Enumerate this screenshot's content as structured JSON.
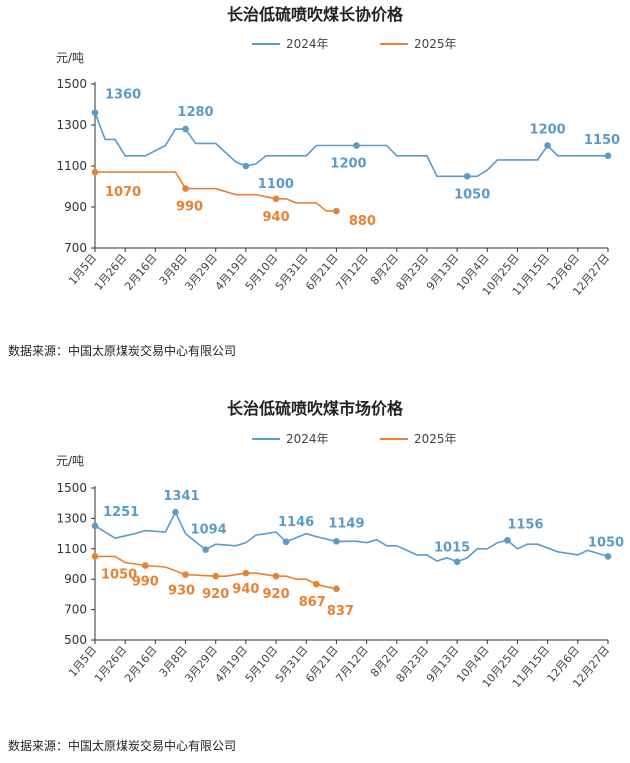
{
  "colors": {
    "s2024": "#5b9bc8",
    "s2025": "#ea8132"
  },
  "chart_data": [
    {
      "type": "line",
      "title": "长治低硫喷吹煤长协价格",
      "unit": "元/吨",
      "ylim": [
        700,
        1500
      ],
      "yticks": [
        700,
        900,
        1100,
        1300,
        1500
      ],
      "xlim": [
        0,
        51
      ],
      "x_tick_labels": [
        "1月5日",
        "1月26日",
        "2月16日",
        "3月8日",
        "3月29日",
        "4月19日",
        "5月10日",
        "5月31日",
        "6月21日",
        "7月12日",
        "8月2日",
        "8月23日",
        "9月13日",
        "10月4日",
        "10月25日",
        "11月15日",
        "12月6日",
        "12月27日"
      ],
      "x_tick_positions": [
        0,
        3,
        6,
        9,
        12,
        15,
        18,
        21,
        24,
        27,
        30,
        33,
        36,
        39,
        42,
        45,
        48,
        51
      ],
      "legend": "top-center",
      "series": [
        {
          "name": "2024年",
          "color_key": "s2024",
          "points": [
            [
              0,
              1360
            ],
            [
              1,
              1230
            ],
            [
              2,
              1230
            ],
            [
              3,
              1150
            ],
            [
              5,
              1150
            ],
            [
              7,
              1200
            ],
            [
              8,
              1280
            ],
            [
              9,
              1280
            ],
            [
              10,
              1210
            ],
            [
              12,
              1210
            ],
            [
              14,
              1120
            ],
            [
              15,
              1100
            ],
            [
              16,
              1110
            ],
            [
              17,
              1150
            ],
            [
              21,
              1150
            ],
            [
              22,
              1200
            ],
            [
              26,
              1200
            ],
            [
              29,
              1200
            ],
            [
              30,
              1150
            ],
            [
              33,
              1150
            ],
            [
              34,
              1050
            ],
            [
              37,
              1050
            ],
            [
              38,
              1050
            ],
            [
              39,
              1080
            ],
            [
              40,
              1130
            ],
            [
              44,
              1130
            ],
            [
              45,
              1200
            ],
            [
              46,
              1150
            ],
            [
              51,
              1150
            ]
          ],
          "markers": [
            [
              0,
              1360,
              "1360"
            ],
            [
              9,
              1280,
              "1280"
            ],
            [
              15,
              1100,
              "1100"
            ],
            [
              26,
              1200,
              "1200"
            ],
            [
              37,
              1050,
              "1050"
            ],
            [
              45,
              1200,
              "1200"
            ],
            [
              51,
              1150,
              "1150"
            ]
          ]
        },
        {
          "name": "2025年",
          "color_key": "s2025",
          "points": [
            [
              0,
              1070
            ],
            [
              8,
              1070
            ],
            [
              9,
              990
            ],
            [
              12,
              990
            ],
            [
              14,
              960
            ],
            [
              16,
              960
            ],
            [
              18,
              940
            ],
            [
              19,
              940
            ],
            [
              20,
              920
            ],
            [
              22,
              920
            ],
            [
              23,
              880
            ],
            [
              24,
              880
            ]
          ],
          "markers": [
            [
              0,
              1070,
              "1070"
            ],
            [
              9,
              990,
              "990"
            ],
            [
              18,
              940,
              "940"
            ],
            [
              24,
              880,
              "880"
            ]
          ]
        }
      ]
    },
    {
      "type": "line",
      "title": "长治低硫喷吹煤市场价格",
      "unit": "元/吨",
      "ylim": [
        500,
        1500
      ],
      "yticks": [
        500,
        700,
        900,
        1100,
        1300,
        1500
      ],
      "xlim": [
        0,
        51
      ],
      "x_tick_labels": [
        "1月5日",
        "1月26日",
        "2月16日",
        "3月8日",
        "3月29日",
        "4月19日",
        "5月10日",
        "5月31日",
        "6月21日",
        "7月12日",
        "8月2日",
        "8月23日",
        "9月13日",
        "10月4日",
        "10月25日",
        "11月15日",
        "12月6日",
        "12月27日"
      ],
      "x_tick_positions": [
        0,
        3,
        6,
        9,
        12,
        15,
        18,
        21,
        24,
        27,
        30,
        33,
        36,
        39,
        42,
        45,
        48,
        51
      ],
      "legend": "top-center",
      "series": [
        {
          "name": "2024年",
          "color_key": "s2024",
          "points": [
            [
              0,
              1251
            ],
            [
              2,
              1170
            ],
            [
              4,
              1200
            ],
            [
              5,
              1220
            ],
            [
              7,
              1210
            ],
            [
              8,
              1341
            ],
            [
              9,
              1200
            ],
            [
              11,
              1094
            ],
            [
              12,
              1130
            ],
            [
              14,
              1120
            ],
            [
              15,
              1140
            ],
            [
              16,
              1190
            ],
            [
              18,
              1210
            ],
            [
              19,
              1146
            ],
            [
              21,
              1200
            ],
            [
              22,
              1180
            ],
            [
              24,
              1149
            ],
            [
              26,
              1150
            ],
            [
              27,
              1140
            ],
            [
              28,
              1160
            ],
            [
              29,
              1120
            ],
            [
              30,
              1120
            ],
            [
              32,
              1060
            ],
            [
              33,
              1060
            ],
            [
              34,
              1020
            ],
            [
              35,
              1040
            ],
            [
              36,
              1015
            ],
            [
              37,
              1040
            ],
            [
              38,
              1100
            ],
            [
              39,
              1100
            ],
            [
              40,
              1140
            ],
            [
              41,
              1156
            ],
            [
              42,
              1100
            ],
            [
              43,
              1130
            ],
            [
              44,
              1130
            ],
            [
              46,
              1080
            ],
            [
              48,
              1060
            ],
            [
              49,
              1090
            ],
            [
              51,
              1050
            ]
          ],
          "markers": [
            [
              0,
              1251,
              "1251"
            ],
            [
              8,
              1341,
              "1341"
            ],
            [
              11,
              1094,
              "1094"
            ],
            [
              19,
              1146,
              "1146"
            ],
            [
              24,
              1149,
              "1149"
            ],
            [
              36,
              1015,
              "1015"
            ],
            [
              41,
              1156,
              "1156"
            ],
            [
              51,
              1050,
              "1050"
            ]
          ]
        },
        {
          "name": "2025年",
          "color_key": "s2025",
          "points": [
            [
              0,
              1050
            ],
            [
              2,
              1050
            ],
            [
              3,
              1010
            ],
            [
              5,
              990
            ],
            [
              7,
              980
            ],
            [
              9,
              930
            ],
            [
              12,
              920
            ],
            [
              13,
              920
            ],
            [
              15,
              940
            ],
            [
              16,
              940
            ],
            [
              18,
              920
            ],
            [
              19,
              920
            ],
            [
              20,
              900
            ],
            [
              21,
              900
            ],
            [
              22,
              867
            ],
            [
              23,
              850
            ],
            [
              24,
              837
            ]
          ],
          "markers": [
            [
              0,
              1050,
              "1050"
            ],
            [
              5,
              990,
              "990"
            ],
            [
              9,
              930,
              "930"
            ],
            [
              12,
              920,
              "920"
            ],
            [
              15,
              940,
              "940"
            ],
            [
              18,
              920,
              "920"
            ],
            [
              22,
              867,
              "867"
            ],
            [
              24,
              837,
              "837"
            ]
          ]
        }
      ]
    }
  ],
  "source_text_1": "数据来源：中国太原煤炭交易中心有限公司",
  "source_text_2": "数据来源：中国太原煤炭交易中心有限公司"
}
